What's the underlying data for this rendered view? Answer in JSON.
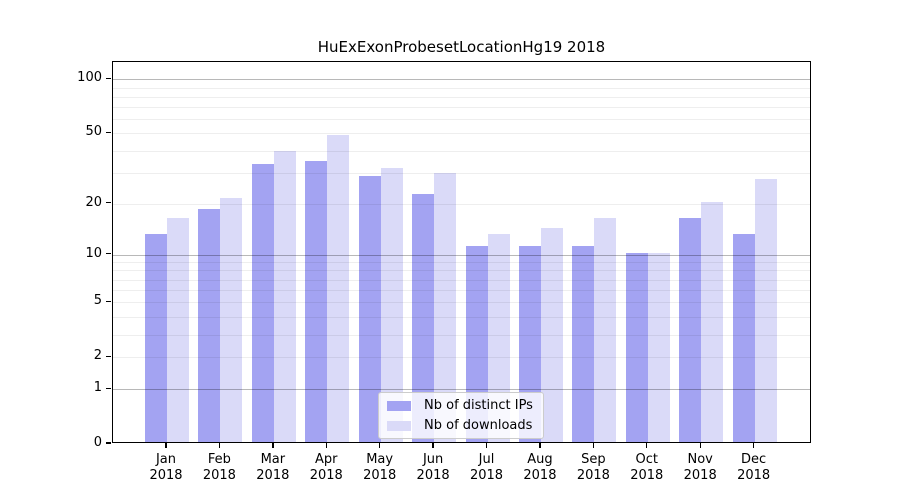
{
  "chart_data": {
    "type": "bar",
    "title": "HuExExonProbesetLocationHg19 2018",
    "categories": [
      "Jan",
      "Feb",
      "Mar",
      "Apr",
      "May",
      "Jun",
      "Jul",
      "Aug",
      "Sep",
      "Oct",
      "Nov",
      "Dec"
    ],
    "category_second_line": "2018",
    "series": [
      {
        "name": "Nb of distinct IPs",
        "color": "#a3a3f2",
        "values": [
          13,
          18,
          33,
          34,
          28,
          22,
          11,
          11,
          11,
          10,
          16,
          13
        ]
      },
      {
        "name": "Nb of downloads",
        "color": "#dadaf8",
        "values": [
          16,
          21,
          39,
          48,
          31,
          29,
          13,
          14,
          16,
          10,
          20,
          27
        ]
      }
    ],
    "xlabel": "",
    "ylabel": "",
    "y_axis": {
      "scale": "log1p",
      "tick_values": [
        0,
        1,
        2,
        5,
        10,
        20,
        50,
        100
      ],
      "tick_labels": [
        "0",
        "1",
        "2",
        "5",
        "10",
        "20",
        "50",
        "100"
      ],
      "major_gridlines": [
        1,
        10,
        100
      ],
      "minor_gridlines": [
        2,
        3,
        4,
        5,
        6,
        7,
        8,
        9,
        20,
        30,
        40,
        50,
        60,
        70,
        80,
        90
      ],
      "ylim": [
        0,
        125
      ]
    },
    "legend": {
      "position": "lower center"
    },
    "grid": true
  },
  "colors": {
    "background": "#ffffff",
    "axis_box": "#000000",
    "bar_distinct_ips": "#a3a3f2",
    "bar_downloads": "#dadaf8"
  }
}
